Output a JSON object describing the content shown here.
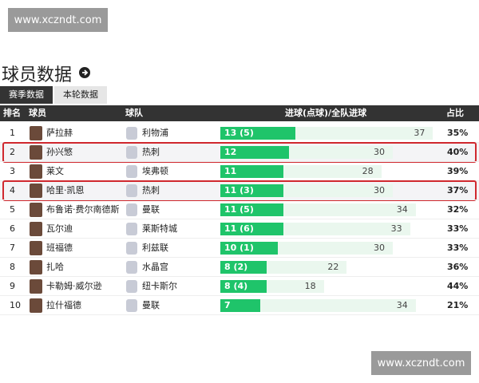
{
  "watermark_top": "www.xczndt.com",
  "watermark_bottom": "www.xczndt.com",
  "title": "球员数据",
  "tabs": [
    "赛季数据",
    "本轮数据"
  ],
  "table": {
    "headers": [
      "排名",
      "球员",
      "球队",
      "进球(点球)/全队进球",
      "占比"
    ],
    "rows": [
      {
        "rank": 1,
        "player": "萨拉赫",
        "team": "利物浦",
        "goals": {
          "value": 13,
          "label": "13 (5)"
        },
        "team_goals": 37,
        "share": "35%"
      },
      {
        "rank": 2,
        "player": "孙兴慜",
        "team": "热刺",
        "goals": 12,
        "team_goals": 30,
        "share": "40%",
        "highlight": true
      },
      {
        "rank": 3,
        "player": "莱文",
        "team": "埃弗顿",
        "goals": 11,
        "team_goals": 28,
        "share": "39%"
      },
      {
        "rank": 4,
        "player": "哈里·凯恩",
        "team": "热刺",
        "goals": {
          "value": 11,
          "label": "11 (3)"
        },
        "team_goals": 30,
        "share": "37%",
        "highlight": true
      },
      {
        "rank": 5,
        "player": "布鲁诺·费尔南德斯",
        "team": "曼联",
        "goals": {
          "value": 11,
          "label": "11 (5)"
        },
        "team_goals": 34,
        "share": "32%"
      },
      {
        "rank": 6,
        "player": "瓦尔迪",
        "team": "莱斯特城",
        "goals": {
          "value": 11,
          "label": "11 (6)"
        },
        "team_goals": 33,
        "share": "33%"
      },
      {
        "rank": 7,
        "player": "班福德",
        "team": "利兹联",
        "goals": {
          "value": 10,
          "label": "10 (1)"
        },
        "team_goals": 30,
        "share": "33%"
      },
      {
        "rank": 8,
        "player": "扎哈",
        "team": "水晶宫",
        "goals": {
          "value": 8,
          "label": "8 (2)"
        },
        "team_goals": 22,
        "share": "36%"
      },
      {
        "rank": 9,
        "player": "卡勒姆·威尔逊",
        "team": "纽卡斯尔",
        "goals": {
          "value": 8,
          "label": "8 (4)"
        },
        "team_goals": 18,
        "share": "44%"
      },
      {
        "rank": 10,
        "player": "拉什福德",
        "team": "曼联",
        "goals": 7,
        "team_goals": 34,
        "share": "21%"
      }
    ]
  }
}
